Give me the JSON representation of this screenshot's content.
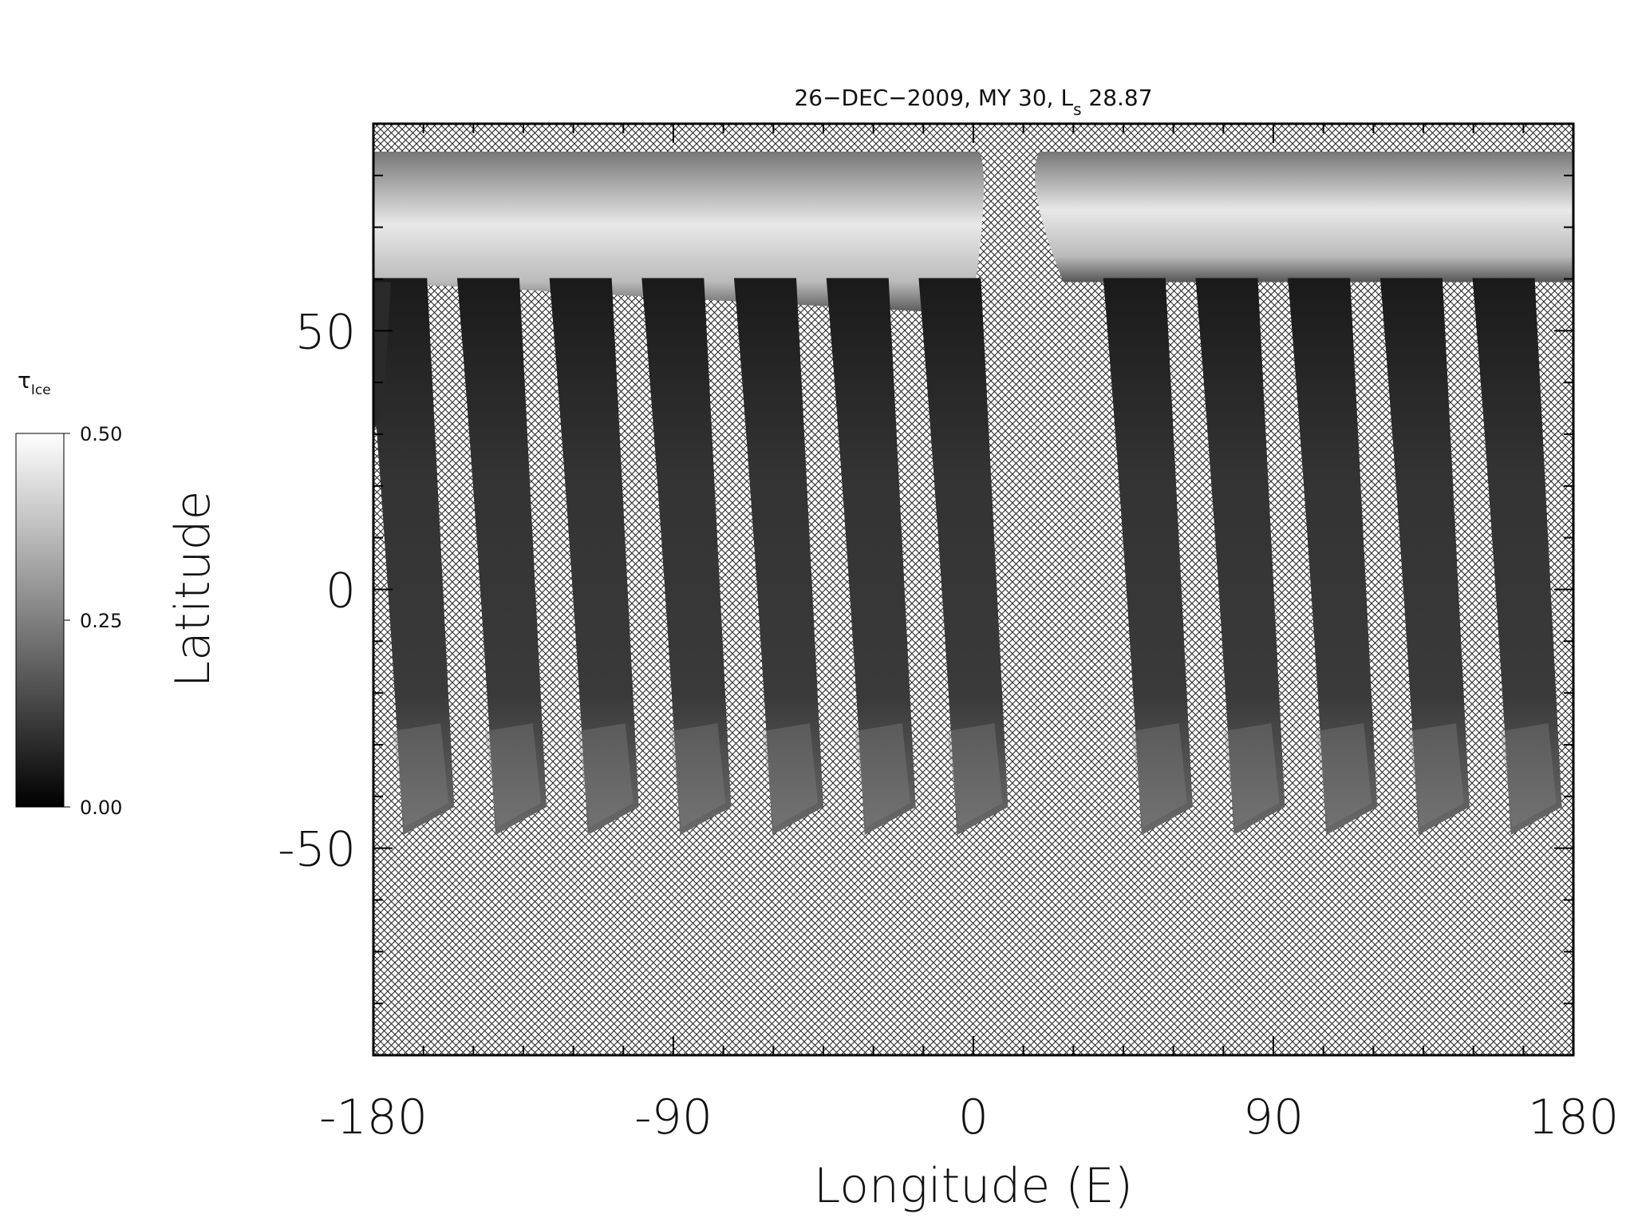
{
  "chart_data": {
    "type": "map",
    "title": [
      "26−DEC−2009, MY 30,  L",
      "s",
      " 28.87"
    ],
    "xlabel": "Longitude (E)",
    "ylabel": "Latitude",
    "xlim": [
      -180,
      180
    ],
    "xticks": [
      -180,
      -90,
      0,
      90,
      180
    ],
    "ylim": [
      -90,
      90
    ],
    "yticks": [
      -50,
      0,
      50
    ],
    "colorbar": {
      "label": [
        "τ",
        "Ice"
      ],
      "lim": [
        0,
        0.5
      ],
      "ticks": [
        {
          "value": 0,
          "label": "0.00"
        },
        {
          "value": 0.25,
          "label": "0.25"
        },
        {
          "value": 0.5,
          "label": "0.50"
        }
      ],
      "colors": [
        "#000000",
        "#ffffff"
      ]
    },
    "missing_pattern": "crosshatch"
  }
}
